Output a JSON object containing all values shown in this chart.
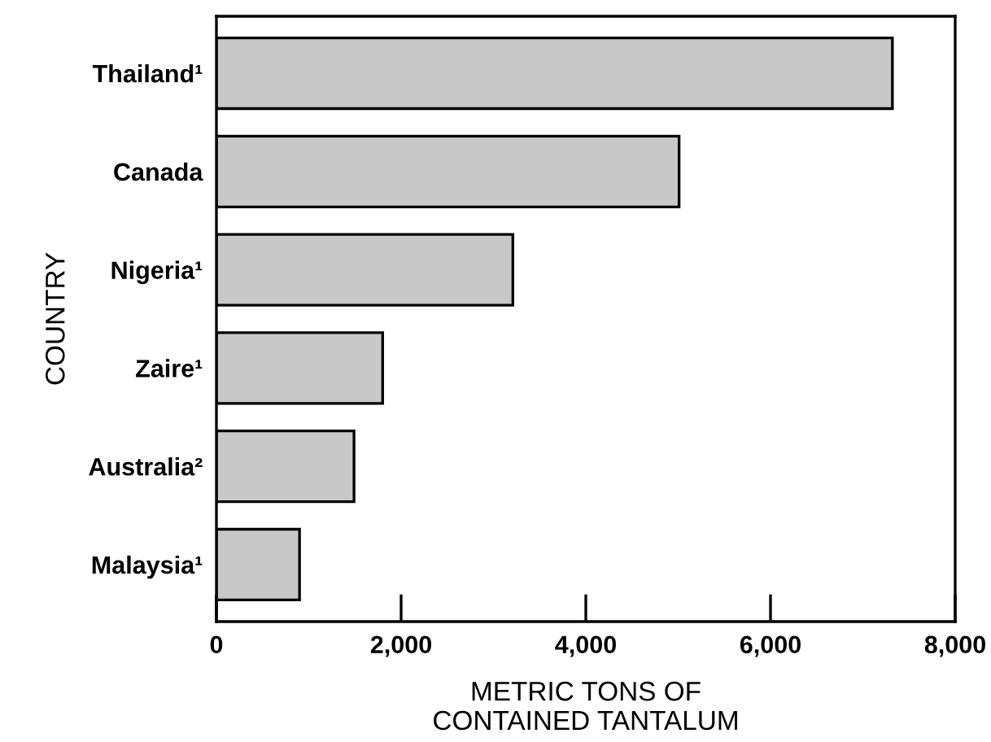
{
  "chart_data": {
    "type": "bar",
    "orientation": "horizontal",
    "categories": [
      "Thailand¹",
      "Canada",
      "Nigeria¹",
      "Zaire¹",
      "Australia²",
      "Malaysia¹"
    ],
    "values": [
      7320,
      5010,
      3210,
      1800,
      1490,
      900
    ],
    "color": "#c8c8c8",
    "xlabel": "METRIC TONS OF\nCONTAINED TANTALUM",
    "ylabel": "COUNTRY",
    "xlim": [
      0,
      8000
    ],
    "xticks": [
      {
        "value": 0,
        "label": "0"
      },
      {
        "value": 2000,
        "label": "2,000"
      },
      {
        "value": 4000,
        "label": "4,000"
      },
      {
        "value": 6000,
        "label": "6,000"
      },
      {
        "value": 8000,
        "label": "8,000"
      }
    ],
    "grid": false
  }
}
